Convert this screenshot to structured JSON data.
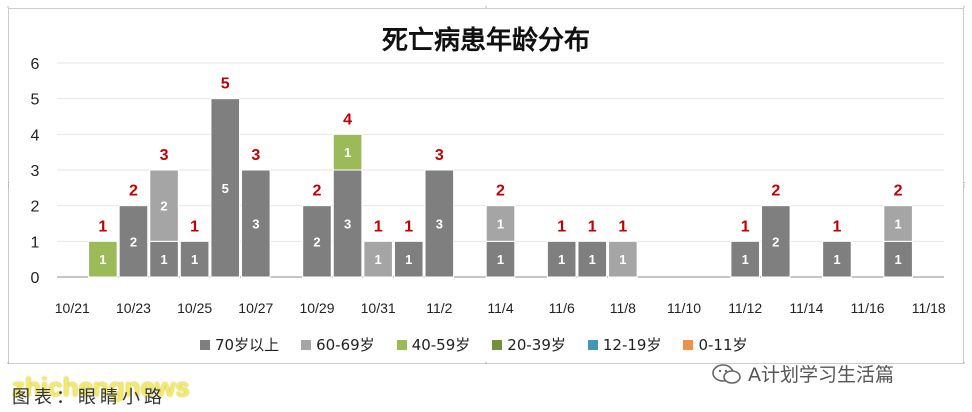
{
  "title": "死亡病患年龄分布",
  "colors": {
    "70岁以上": "#7f7f7f",
    "60-69岁": "#a5a5a5",
    "40-59岁": "#9bbb59",
    "20-39岁": "#70923b",
    "12-19岁": "#4198af",
    "0-11岁": "#f0914a",
    "total_label": "#c00000",
    "segment_label": "#ffffff"
  },
  "legend": [
    "70岁以上",
    "60-69岁",
    "40-59岁",
    "20-39岁",
    "12-19岁",
    "0-11岁"
  ],
  "caption": "图表：眼睛小路",
  "watermark": "zhichengnews",
  "wechat_account": "A计划学习生活篇",
  "chart_data": {
    "type": "bar",
    "stacked": true,
    "title": "死亡病患年龄分布",
    "categories": [
      "10/21",
      "10/22",
      "10/23",
      "10/24",
      "10/25",
      "10/26",
      "10/27",
      "10/28",
      "10/29",
      "10/30",
      "10/31",
      "11/1",
      "11/2",
      "11/3",
      "11/4",
      "11/5",
      "11/6",
      "11/7",
      "11/8",
      "11/9",
      "11/10",
      "11/11",
      "11/12",
      "11/13",
      "11/14",
      "11/15",
      "11/16",
      "11/17",
      "11/18"
    ],
    "tick_labels": [
      "10/21",
      "10/23",
      "10/25",
      "10/27",
      "10/29",
      "10/31",
      "11/2",
      "11/4",
      "11/6",
      "11/8",
      "11/10",
      "11/12",
      "11/14",
      "11/16",
      "11/18"
    ],
    "series": [
      {
        "name": "70岁以上",
        "values": [
          0,
          0,
          2,
          1,
          1,
          5,
          3,
          0,
          2,
          3,
          0,
          1,
          3,
          0,
          1,
          0,
          1,
          1,
          0,
          0,
          0,
          0,
          1,
          2,
          0,
          1,
          0,
          1,
          0
        ]
      },
      {
        "name": "60-69岁",
        "values": [
          0,
          0,
          0,
          2,
          0,
          0,
          0,
          0,
          0,
          0,
          1,
          0,
          0,
          0,
          1,
          0,
          0,
          0,
          1,
          0,
          0,
          0,
          0,
          0,
          0,
          0,
          0,
          1,
          0
        ]
      },
      {
        "name": "40-59岁",
        "values": [
          0,
          1,
          0,
          0,
          0,
          0,
          0,
          0,
          0,
          1,
          0,
          0,
          0,
          0,
          0,
          0,
          0,
          0,
          0,
          0,
          0,
          0,
          0,
          0,
          0,
          0,
          0,
          0,
          0
        ]
      },
      {
        "name": "20-39岁",
        "values": [
          0,
          0,
          0,
          0,
          0,
          0,
          0,
          0,
          0,
          0,
          0,
          0,
          0,
          0,
          0,
          0,
          0,
          0,
          0,
          0,
          0,
          0,
          0,
          0,
          0,
          0,
          0,
          0,
          0
        ]
      },
      {
        "name": "12-19岁",
        "values": [
          0,
          0,
          0,
          0,
          0,
          0,
          0,
          0,
          0,
          0,
          0,
          0,
          0,
          0,
          0,
          0,
          0,
          0,
          0,
          0,
          0,
          0,
          0,
          0,
          0,
          0,
          0,
          0,
          0
        ]
      },
      {
        "name": "0-11岁",
        "values": [
          0,
          0,
          0,
          0,
          0,
          0,
          0,
          0,
          0,
          0,
          0,
          0,
          0,
          0,
          0,
          0,
          0,
          0,
          0,
          0,
          0,
          0,
          0,
          0,
          0,
          0,
          0,
          0,
          0
        ]
      }
    ],
    "totals": [
      0,
      1,
      2,
      3,
      1,
      5,
      3,
      0,
      2,
      4,
      1,
      1,
      3,
      0,
      2,
      0,
      1,
      1,
      1,
      0,
      0,
      0,
      1,
      2,
      0,
      1,
      0,
      2,
      0
    ],
    "ylim": [
      0,
      6
    ],
    "yticks": [
      0,
      1,
      2,
      3,
      4,
      5,
      6
    ],
    "grid": true,
    "legend_position": "bottom"
  }
}
